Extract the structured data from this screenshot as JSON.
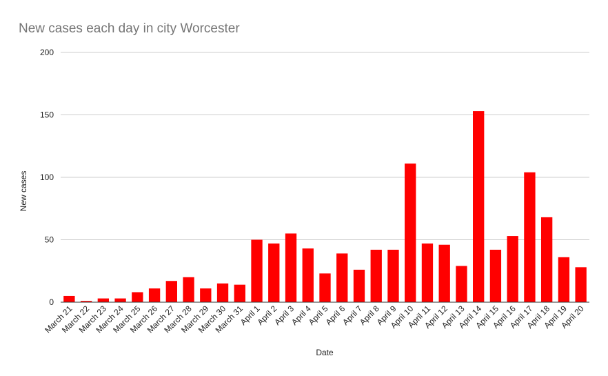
{
  "chart_data": {
    "type": "bar",
    "title": "New cases each day in city Worcester",
    "xlabel": "Date",
    "ylabel": "New cases",
    "ylim": [
      0,
      200
    ],
    "yticks": [
      0,
      50,
      100,
      150,
      200
    ],
    "grid": true,
    "legend": "none",
    "colors": {
      "bar": "#ff0000",
      "grid": "#cccccc",
      "axis": "#333333",
      "title": "#757575"
    },
    "categories": [
      "March 21",
      "March 22",
      "March 23",
      "March 24",
      "March 25",
      "March 26",
      "March 27",
      "March 28",
      "March 29",
      "March 30",
      "March 31",
      "April 1",
      "April 2",
      "April 3",
      "April 4",
      "April 5",
      "April 6",
      "April 7",
      "April 8",
      "April 9",
      "April 10",
      "April 11",
      "April 12",
      "April 13",
      "April 14",
      "April 15",
      "April 16",
      "April 17",
      "April 18",
      "April 19",
      "April 20"
    ],
    "values": [
      5,
      1,
      3,
      3,
      8,
      11,
      17,
      20,
      11,
      15,
      14,
      50,
      47,
      55,
      43,
      23,
      39,
      26,
      42,
      42,
      111,
      47,
      46,
      29,
      153,
      42,
      53,
      104,
      68,
      36,
      28
    ]
  }
}
